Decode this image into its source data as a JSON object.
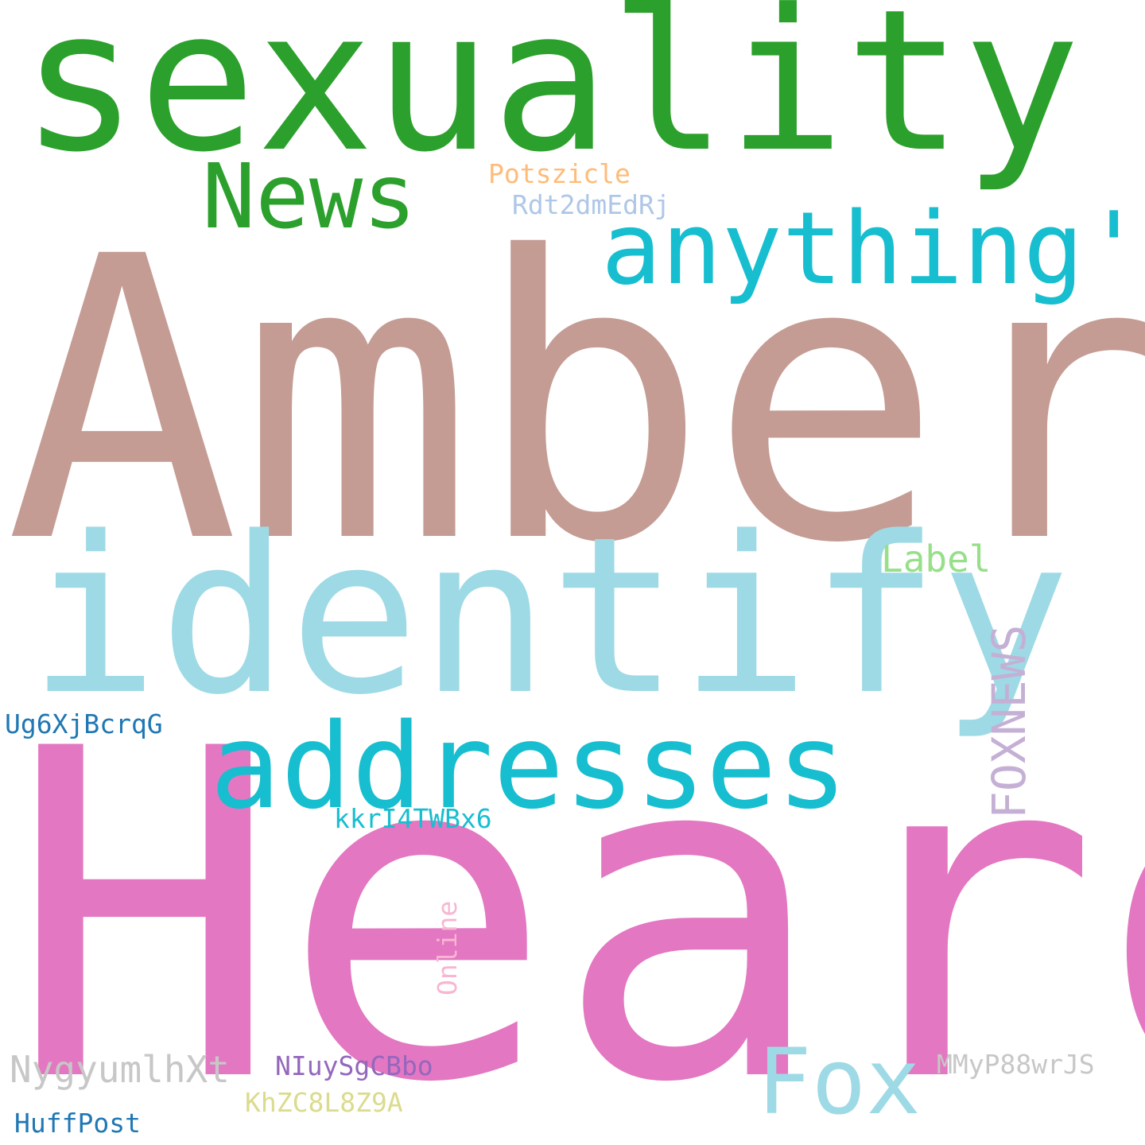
{
  "word_cloud": {
    "background_color": "#ffffff",
    "words": [
      {
        "id": "amber",
        "text": "Amber",
        "color": "#c49c94"
      },
      {
        "id": "heard",
        "text": "Heard",
        "color": "#e377c2"
      },
      {
        "id": "sexuality",
        "text": "sexuality",
        "color": "#2ca02c"
      },
      {
        "id": "identify",
        "text": "identify",
        "color": "#9edae5"
      },
      {
        "id": "addresses",
        "text": "addresses",
        "color": "#17becf"
      },
      {
        "id": "anything",
        "text": "anything'",
        "color": "#17becf"
      },
      {
        "id": "news",
        "text": "News",
        "color": "#2ca02c"
      },
      {
        "id": "fox",
        "text": "Fox",
        "color": "#9edae5"
      },
      {
        "id": "foxnews",
        "text": "FOXNEWS",
        "color": "#c5b0d5",
        "vertical": true
      },
      {
        "id": "label",
        "text": "Label",
        "color": "#98df8a"
      },
      {
        "id": "potszicle",
        "text": "Potszicle",
        "color": "#ffbb78"
      },
      {
        "id": "rdt2dmedrj",
        "text": "Rdt2dmEdRj",
        "color": "#aec7e8"
      },
      {
        "id": "ug6xjbcrqg",
        "text": "Ug6XjBcrqG",
        "color": "#1f77b4"
      },
      {
        "id": "kkri4twbx6",
        "text": "kkrI4TWBx6",
        "color": "#17becf"
      },
      {
        "id": "online",
        "text": "Online",
        "color": "#f7b6d2",
        "vertical": true
      },
      {
        "id": "nygyumlhxt",
        "text": "NygyumlhXt",
        "color": "#c7c7c7"
      },
      {
        "id": "niuysgcbbo",
        "text": "NIuySgCBbo",
        "color": "#9467bd"
      },
      {
        "id": "khzc8l8z9a",
        "text": "KhZC8L8Z9A",
        "color": "#dbdb8d"
      },
      {
        "id": "huffpost",
        "text": "HuffPost",
        "color": "#1f77b4"
      },
      {
        "id": "mmyp88wrjs",
        "text": "MMyP88wrJS",
        "color": "#c7c7c7"
      }
    ]
  }
}
